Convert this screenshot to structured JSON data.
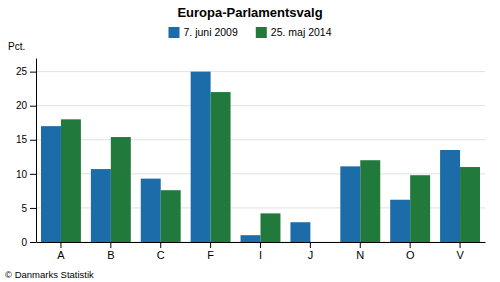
{
  "chart_data": {
    "type": "bar",
    "title": "Europa-Parlamentsvalg",
    "categories": [
      "A",
      "B",
      "C",
      "F",
      "I",
      "J",
      "N",
      "O",
      "V"
    ],
    "series": [
      {
        "name": "7. juni 2009",
        "color": "#1b6ca8",
        "values": [
          17.0,
          10.7,
          9.3,
          25.0,
          1.0,
          2.9,
          11.1,
          6.2,
          13.5
        ]
      },
      {
        "name": "25. maj 2014",
        "color": "#217a3c",
        "values": [
          18.0,
          15.4,
          7.6,
          22.0,
          4.2,
          0.0,
          12.0,
          9.8,
          11.0
        ]
      }
    ],
    "ylabel": "Pct.",
    "annotations": [
      "© Danmarks Statistik"
    ],
    "ylim": [
      0,
      27
    ],
    "yticks": [
      0,
      5,
      10,
      15,
      20,
      25
    ],
    "grid": true,
    "legend": "top"
  }
}
